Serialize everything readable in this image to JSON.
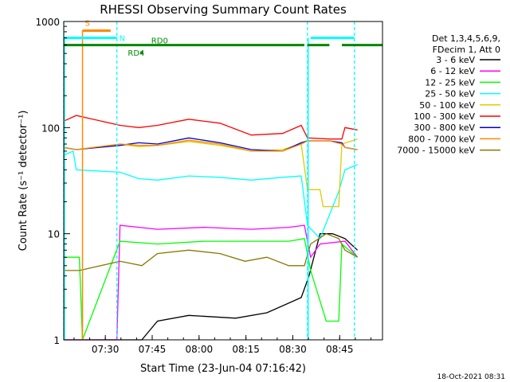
{
  "chart_data": {
    "type": "line",
    "title": "RHESSI Observing Summary Count Rates",
    "xlabel": "Start Time (23-Jun-04 07:16:42)",
    "ylabel": "Count Rate (s⁻¹ detector⁻¹)",
    "x_units": "minutes since 07:16:42",
    "xlim": [
      0,
      102
    ],
    "ylim": [
      1,
      1000
    ],
    "yscale": "log",
    "x_ticks": [
      {
        "label": "07:30",
        "value": 13.3
      },
      {
        "label": "07:45",
        "value": 28.3
      },
      {
        "label": "08:00",
        "value": 43.3
      },
      {
        "label": "08:15",
        "value": 58.3
      },
      {
        "label": "08:30",
        "value": 73.3
      },
      {
        "label": "08:45",
        "value": 88.3
      }
    ],
    "y_ticks": [
      {
        "label": "1",
        "value": 1
      },
      {
        "label": "10",
        "value": 10
      },
      {
        "label": "100",
        "value": 100
      },
      {
        "label": "1000",
        "value": 1000
      }
    ],
    "legend_header": [
      "Det 1,3,4,5,6,9,",
      "FDecim 1, Att 0"
    ],
    "legend_position": "right",
    "series": [
      {
        "name": "3 - 6 keV",
        "color": "#000000",
        "points": [
          [
            0,
            1
          ],
          [
            25,
            1
          ],
          [
            30,
            1.5
          ],
          [
            40,
            1.7
          ],
          [
            55,
            1.6
          ],
          [
            65,
            1.8
          ],
          [
            76,
            2.5
          ],
          [
            78.5,
            4
          ],
          [
            82,
            10
          ],
          [
            86,
            10
          ],
          [
            90,
            9
          ],
          [
            94,
            7
          ]
        ]
      },
      {
        "name": "6 - 12 keV",
        "color": "#ff00ff",
        "points": [
          [
            0,
            1
          ],
          [
            17,
            1
          ],
          [
            18,
            12
          ],
          [
            30,
            11
          ],
          [
            45,
            11.5
          ],
          [
            60,
            11
          ],
          [
            72,
            11.5
          ],
          [
            77,
            12
          ],
          [
            79,
            6
          ],
          [
            82,
            8
          ],
          [
            90,
            8.5
          ],
          [
            94,
            6
          ]
        ]
      },
      {
        "name": "12 - 25 keV",
        "color": "#00ff00",
        "points": [
          [
            0,
            6
          ],
          [
            5,
            6
          ],
          [
            6,
            1
          ],
          [
            18,
            8.5
          ],
          [
            30,
            8
          ],
          [
            45,
            8.5
          ],
          [
            60,
            8.5
          ],
          [
            72,
            8.5
          ],
          [
            77,
            9
          ],
          [
            79,
            4.5
          ],
          [
            84,
            1.5
          ],
          [
            88,
            1.5
          ],
          [
            89,
            8
          ],
          [
            94,
            6
          ]
        ]
      },
      {
        "name": "25 - 50 keV",
        "color": "#00ffff",
        "points": [
          [
            0,
            55
          ],
          [
            3,
            60
          ],
          [
            4,
            40
          ],
          [
            18,
            38
          ],
          [
            24,
            33
          ],
          [
            30,
            32
          ],
          [
            40,
            35
          ],
          [
            50,
            34
          ],
          [
            60,
            32
          ],
          [
            70,
            34
          ],
          [
            76,
            35
          ],
          [
            78,
            12
          ],
          [
            82,
            9
          ],
          [
            88,
            25
          ],
          [
            90,
            40
          ],
          [
            94,
            45
          ]
        ]
      },
      {
        "name": "50 - 100 keV",
        "color": "#ddcc00",
        "points": [
          [
            0,
            65
          ],
          [
            4,
            62
          ],
          [
            18,
            70
          ],
          [
            24,
            66
          ],
          [
            30,
            68
          ],
          [
            40,
            74
          ],
          [
            50,
            68
          ],
          [
            60,
            60
          ],
          [
            70,
            62
          ],
          [
            76,
            70
          ],
          [
            78,
            26
          ],
          [
            82,
            26
          ],
          [
            83,
            18
          ],
          [
            88,
            18
          ],
          [
            89,
            70
          ],
          [
            94,
            78
          ]
        ]
      },
      {
        "name": "100 - 300 keV",
        "color": "#ff0000",
        "points": [
          [
            0,
            115
          ],
          [
            4,
            130
          ],
          [
            18,
            105
          ],
          [
            24,
            100
          ],
          [
            30,
            105
          ],
          [
            40,
            120
          ],
          [
            50,
            110
          ],
          [
            60,
            85
          ],
          [
            70,
            88
          ],
          [
            76,
            105
          ],
          [
            78,
            80
          ],
          [
            85,
            78
          ],
          [
            89,
            78
          ],
          [
            90,
            100
          ],
          [
            94,
            95
          ]
        ]
      },
      {
        "name": "300 - 800 keV",
        "color": "#0000cc",
        "points": [
          [
            0,
            65
          ],
          [
            4,
            62
          ],
          [
            18,
            68
          ],
          [
            24,
            72
          ],
          [
            30,
            70
          ],
          [
            40,
            80
          ],
          [
            50,
            72
          ],
          [
            60,
            62
          ],
          [
            70,
            60
          ],
          [
            76,
            72
          ],
          [
            78,
            75
          ],
          [
            85,
            75
          ],
          [
            89,
            72
          ],
          [
            90,
            65
          ],
          [
            94,
            62
          ]
        ]
      },
      {
        "name": "800 - 7000 keV",
        "color": "#ff8800",
        "points": [
          [
            0,
            65
          ],
          [
            4,
            62
          ],
          [
            18,
            70
          ],
          [
            24,
            68
          ],
          [
            30,
            68
          ],
          [
            40,
            76
          ],
          [
            50,
            70
          ],
          [
            60,
            60
          ],
          [
            70,
            60
          ],
          [
            76,
            70
          ],
          [
            78,
            75
          ],
          [
            85,
            75
          ],
          [
            89,
            70
          ],
          [
            90,
            65
          ],
          [
            94,
            62
          ]
        ]
      },
      {
        "name": "7000 - 15000 keV",
        "color": "#887700",
        "points": [
          [
            0,
            4.5
          ],
          [
            5,
            4.5
          ],
          [
            18,
            5.5
          ],
          [
            25,
            5
          ],
          [
            30,
            6.5
          ],
          [
            40,
            7
          ],
          [
            50,
            6.5
          ],
          [
            58,
            5.5
          ],
          [
            65,
            6
          ],
          [
            72,
            5
          ],
          [
            77,
            5
          ],
          [
            79,
            8
          ],
          [
            84,
            10
          ],
          [
            88,
            9
          ],
          [
            90,
            7
          ],
          [
            94,
            6
          ]
        ]
      }
    ],
    "annotations": {
      "flags": [
        {
          "label": "S",
          "color": "#ff8800",
          "x_start": 6,
          "x_end": 15,
          "level": 820
        },
        {
          "label": "N",
          "color": "#00ffff",
          "x_start": 0,
          "x_end": 17,
          "level": 700
        },
        {
          "label": "RD0",
          "color": "#008800",
          "x_start": 0,
          "x_end": 77,
          "level": 600
        },
        {
          "label": "RD4",
          "color": "#008800",
          "x_start": 24.5,
          "x_end": 24.9,
          "level": 510
        }
      ],
      "night_boundaries_x": [
        0,
        17,
        78,
        93
      ],
      "cyan_vlines_x": [
        0,
        78
      ],
      "orange_vlines_x": [
        6
      ],
      "n_segments": [
        [
          0,
          17
        ],
        [
          79,
          93
        ]
      ],
      "rd0_segments": [
        [
          0,
          77
        ],
        [
          78,
          85
        ],
        [
          89,
          102
        ]
      ]
    },
    "timestamp": "18-Oct-2021 08:31"
  }
}
